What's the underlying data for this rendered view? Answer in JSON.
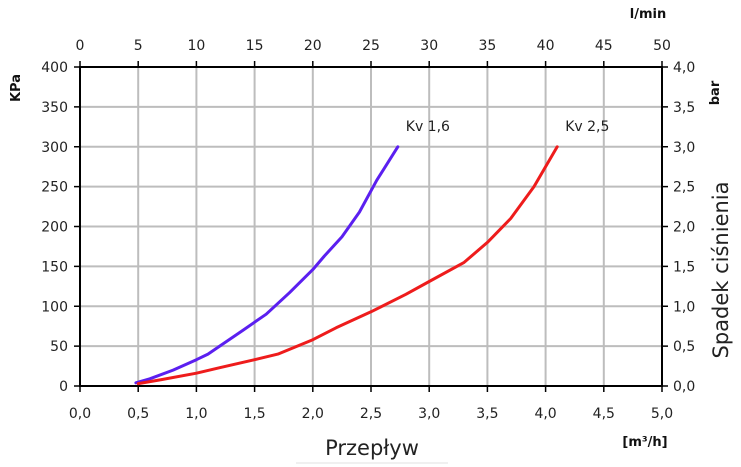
{
  "chart_data": {
    "type": "line",
    "xlabel": "Przepływ",
    "xunit": "[m³/h]",
    "ylabel_right": "Spadek ciśnienia",
    "y_left_unit": "KPa",
    "y_right_unit": "bar",
    "x_top_unit": "l/min",
    "xlim": [
      0,
      5
    ],
    "ylim": [
      0,
      400
    ],
    "x_ticks": [
      "0,0",
      "0,5",
      "1,0",
      "1,5",
      "2,0",
      "2,5",
      "3,0",
      "3,5",
      "4,0",
      "4,5",
      "5,0"
    ],
    "x_top_ticks": [
      "0",
      "5",
      "10",
      "15",
      "20",
      "25",
      "30",
      "35",
      "40",
      "45",
      "50"
    ],
    "y_left_ticks": [
      "0",
      "50",
      "100",
      "150",
      "200",
      "250",
      "300",
      "350",
      "400"
    ],
    "y_right_ticks": [
      "0,0",
      "0,5",
      "1,0",
      "1,5",
      "2,0",
      "2,5",
      "3,0",
      "3,5",
      "4,0"
    ],
    "grid": true,
    "series": [
      {
        "name": "Kv 1,6",
        "color": "#5b1ff0",
        "x": [
          0.48,
          0.6,
          0.8,
          1.0,
          1.1,
          1.2,
          1.4,
          1.6,
          1.8,
          2.0,
          2.1,
          2.25,
          2.4,
          2.55,
          2.73
        ],
        "y": [
          4,
          9,
          20,
          33,
          40,
          50,
          70,
          90,
          117,
          146,
          163,
          187,
          218,
          258,
          300
        ]
      },
      {
        "name": "Kv 2,5",
        "color": "#ee1c1c",
        "x": [
          0.5,
          0.7,
          1.0,
          1.2,
          1.5,
          1.7,
          2.0,
          2.2,
          2.5,
          2.8,
          3.0,
          3.3,
          3.5,
          3.7,
          3.9,
          4.1
        ],
        "y": [
          3,
          8,
          16,
          23,
          33,
          40,
          58,
          73,
          93,
          115,
          131,
          155,
          180,
          210,
          250,
          300
        ]
      }
    ]
  }
}
